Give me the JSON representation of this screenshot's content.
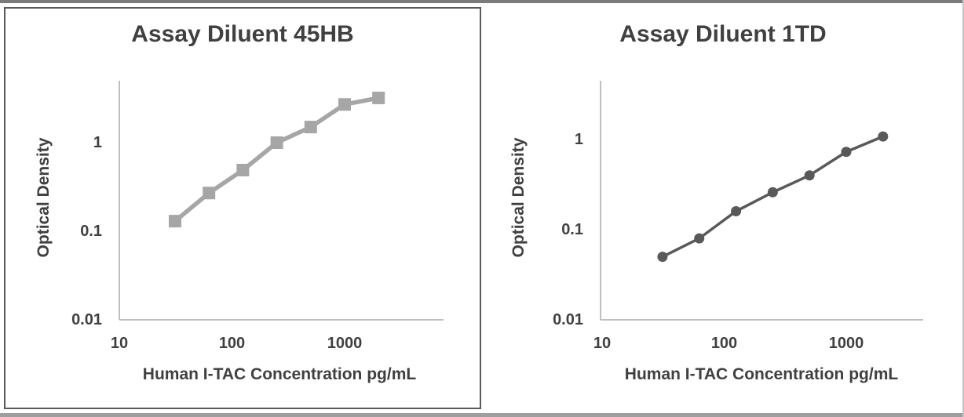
{
  "window": {
    "background_color": "#ffffff",
    "frame_top_color": "#7b7b7b",
    "frame_bottom_color": "#9e9e9e",
    "frame_right_color": "#c4c4c4",
    "left_panel_border_color": "#595959",
    "axis_line_color": "#bfbfbf",
    "text_color": "#404040"
  },
  "chart_data": [
    {
      "type": "line",
      "title": "Assay Diluent 45HB",
      "xlabel": "Human I-TAC Concentration pg/mL",
      "ylabel": "Optical Density",
      "xscale": "log",
      "yscale": "log",
      "x": [
        31.25,
        62.5,
        125,
        250,
        500,
        1000,
        2000
      ],
      "y": [
        0.13,
        0.27,
        0.49,
        1.0,
        1.5,
        2.7,
        3.2
      ],
      "xtick_values": [
        10,
        100,
        1000
      ],
      "xtick_labels": [
        "10",
        "100",
        "1000"
      ],
      "ytick_values": [
        1,
        0.1,
        0.01
      ],
      "ytick_labels": [
        "1",
        "0.1",
        "0.01"
      ],
      "xlim": [
        10,
        7500
      ],
      "ylim": [
        0.01,
        4.8
      ],
      "grid": false,
      "legend": "none",
      "marker": "square",
      "series_color": "#a6a6a6",
      "line_width": 5.5,
      "marker_size": 16
    },
    {
      "type": "line",
      "title": "Assay Diluent 1TD",
      "xlabel": "Human I-TAC Concentration pg/mL",
      "ylabel": "Optical Density",
      "xscale": "log",
      "yscale": "log",
      "x": [
        31.25,
        62.5,
        125,
        250,
        500,
        1000,
        2000
      ],
      "y": [
        0.05,
        0.08,
        0.16,
        0.26,
        0.4,
        0.73,
        1.08
      ],
      "xtick_values": [
        10,
        100,
        1000
      ],
      "xtick_labels": [
        "10",
        "100",
        "1000"
      ],
      "ytick_values": [
        1,
        0.1,
        0.01
      ],
      "ytick_labels": [
        "1",
        "0.1",
        "0.01"
      ],
      "xlim": [
        10,
        4600
      ],
      "ylim": [
        0.01,
        4.3
      ],
      "grid": false,
      "legend": "none",
      "marker": "circle",
      "series_color": "#595959",
      "line_width": 3.5,
      "marker_size": 13
    }
  ]
}
